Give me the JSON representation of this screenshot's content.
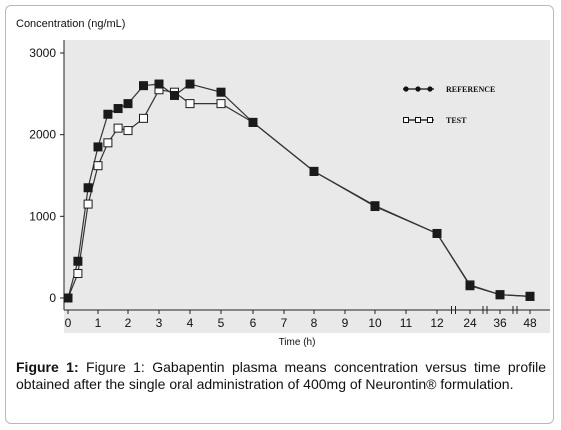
{
  "figure": {
    "caption_label": "Figure 1:",
    "caption_text": "Figure 1: Gabapentin plasma means concentration versus time profile obtained after the single oral administration of 400mg of Neurontin® formulation."
  },
  "chart_data": {
    "type": "line",
    "ylabel": "Concentration (ng/mL)",
    "xlabel": "Time (h)",
    "ylim": [
      0,
      3000
    ],
    "yticks": [
      0,
      1000,
      2000,
      3000
    ],
    "x_categories": [
      "0",
      "1",
      "2",
      "3",
      "4",
      "5",
      "6",
      "7",
      "8",
      "9",
      "10",
      "11",
      "12",
      "24",
      "36",
      "48"
    ],
    "grid": false,
    "legend_position": "top-right",
    "series": [
      {
        "name": "REFERENCE",
        "marker": "filled",
        "x": [
          0,
          0.33,
          0.67,
          1,
          1.33,
          1.67,
          2,
          2.5,
          3,
          3.5,
          4,
          5,
          6,
          8,
          10,
          12,
          24,
          36,
          48
        ],
        "y": [
          0,
          450,
          1350,
          1850,
          2250,
          2320,
          2380,
          2600,
          2620,
          2480,
          2620,
          2520,
          2150,
          1550,
          1130,
          790,
          150,
          40,
          20
        ]
      },
      {
        "name": "TEST",
        "marker": "open",
        "x": [
          0,
          0.33,
          0.67,
          1,
          1.33,
          1.67,
          2,
          2.5,
          3,
          3.5,
          4,
          5,
          6,
          8,
          10,
          12,
          24,
          36,
          48
        ],
        "y": [
          0,
          300,
          1150,
          1620,
          1900,
          2080,
          2050,
          2200,
          2550,
          2520,
          2380,
          2380,
          2150,
          1550,
          1120,
          790,
          160,
          40,
          20
        ]
      }
    ]
  }
}
